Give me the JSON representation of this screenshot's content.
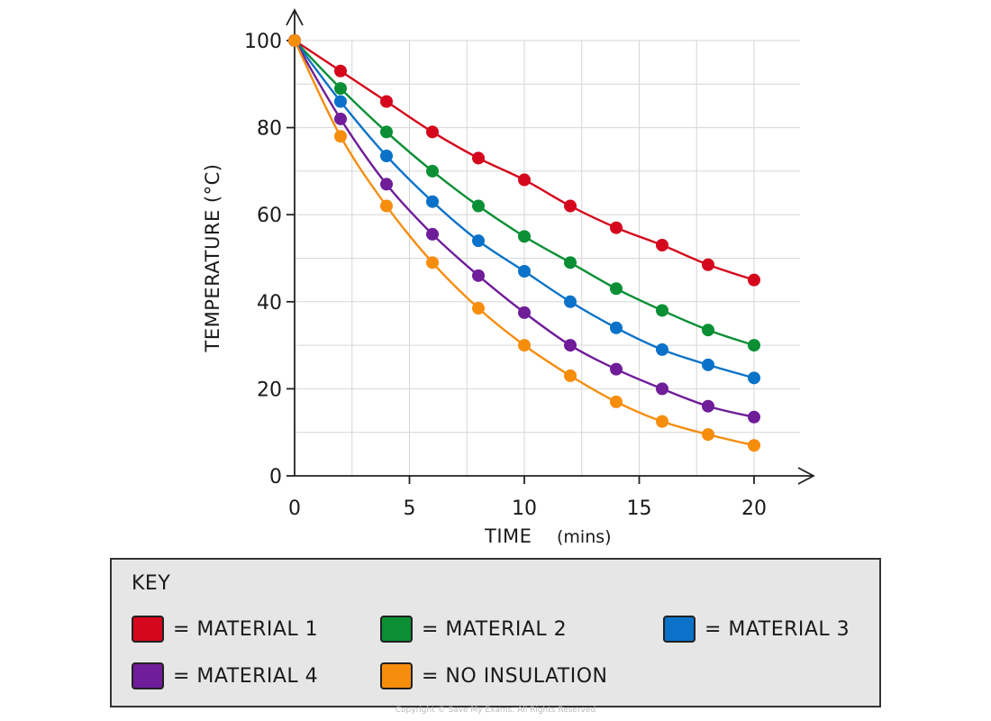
{
  "chart_data": {
    "type": "line",
    "xlabel": "TIME",
    "xlabel_unit": "(mins)",
    "ylabel": "TEMPERATURE (°C)",
    "xlim": [
      0,
      22
    ],
    "ylim": [
      0,
      100
    ],
    "x_ticks": [
      0,
      5,
      10,
      15,
      20
    ],
    "y_ticks": [
      0,
      20,
      40,
      60,
      80,
      100
    ],
    "grid": true,
    "x": [
      0,
      2,
      4,
      6,
      8,
      10,
      12,
      14,
      16,
      18,
      20
    ],
    "series": [
      {
        "name": "MATERIAL 1",
        "color": "#d4071c",
        "values": [
          100,
          93,
          86,
          79,
          73,
          68,
          62,
          57,
          53,
          48.5,
          45
        ]
      },
      {
        "name": "MATERIAL 2",
        "color": "#0a8f35",
        "values": [
          100,
          89,
          79,
          70,
          62,
          55,
          49,
          43,
          38,
          33.5,
          30
        ]
      },
      {
        "name": "MATERIAL 3",
        "color": "#0a72c8",
        "values": [
          100,
          86,
          73.5,
          63,
          54,
          47,
          40,
          34,
          29,
          25.5,
          22.5
        ]
      },
      {
        "name": "MATERIAL 4",
        "color": "#6f1d99",
        "values": [
          100,
          82,
          67,
          55.5,
          46,
          37.5,
          30,
          24.5,
          20,
          16,
          13.5
        ]
      },
      {
        "name": "NO INSULATION",
        "color": "#f68d0d",
        "values": [
          100,
          78,
          62,
          49,
          38.5,
          30,
          23,
          17,
          12.5,
          9.5,
          7
        ]
      }
    ]
  },
  "key": {
    "title": "KEY",
    "items": [
      {
        "label": "= MATERIAL 1",
        "color": "#d4071c"
      },
      {
        "label": "= MATERIAL 2",
        "color": "#0a8f35"
      },
      {
        "label": "= MATERIAL 3",
        "color": "#0a72c8"
      },
      {
        "label": "= MATERIAL 4",
        "color": "#6f1d99"
      },
      {
        "label": "= NO INSULATION",
        "color": "#f68d0d"
      }
    ]
  },
  "copyright": "Copyright © Save My Exams. All Rights Reserved"
}
